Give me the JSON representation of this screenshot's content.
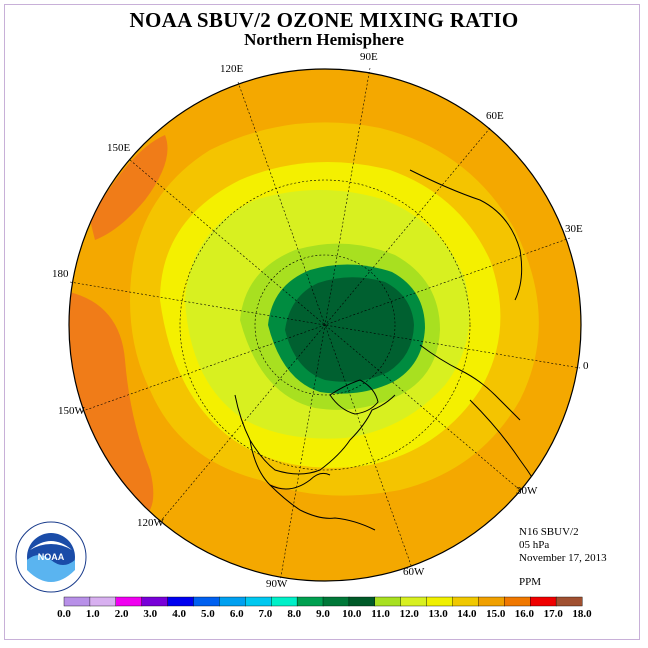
{
  "title": "NOAA SBUV/2 OZONE MIXING RATIO",
  "subtitle": "Northern Hemisphere",
  "longitude_labels": {
    "lon_90e": "90E",
    "lon_120e": "120E",
    "lon_60e": "60E",
    "lon_150e": "150E",
    "lon_30e": "30E",
    "lon_180": "180",
    "lon_0": "0",
    "lon_150w": "150W",
    "lon_30w": "30W",
    "lon_120w": "120W",
    "lon_60w": "60W",
    "lon_90w": "90W"
  },
  "info": {
    "instrument": "N16 SBUV/2",
    "level": "05 hPa",
    "date": "November 17, 2013",
    "unit": "PPM"
  },
  "logo_text": "NOAA",
  "colorbar": {
    "ticks": [
      "0.0",
      "1.0",
      "2.0",
      "3.0",
      "4.0",
      "5.0",
      "6.0",
      "7.0",
      "8.0",
      "9.0",
      "10.0",
      "11.0",
      "12.0",
      "13.0",
      "14.0",
      "15.0",
      "16.0",
      "17.0",
      "18.0"
    ],
    "colors": [
      "#b890e8",
      "#d8b0f0",
      "#f000f0",
      "#7800d8",
      "#0000f0",
      "#0060f0",
      "#00a0f0",
      "#00c8f0",
      "#00f0c8",
      "#00a050",
      "#007838",
      "#005a28",
      "#a8e020",
      "#d8f020",
      "#f0f000",
      "#f0c800",
      "#f0a000",
      "#f07800",
      "#f00000",
      "#a05030"
    ]
  },
  "colors": {
    "outer": "#f4a800",
    "ring_orange_dark": "#f07c18",
    "ring_gold": "#f4c400",
    "ring_yellow": "#f4f000",
    "ring_ygreen": "#d8f020",
    "ring_lgreen": "#a8e020",
    "ring_green": "#008c40",
    "core": "#006030"
  }
}
